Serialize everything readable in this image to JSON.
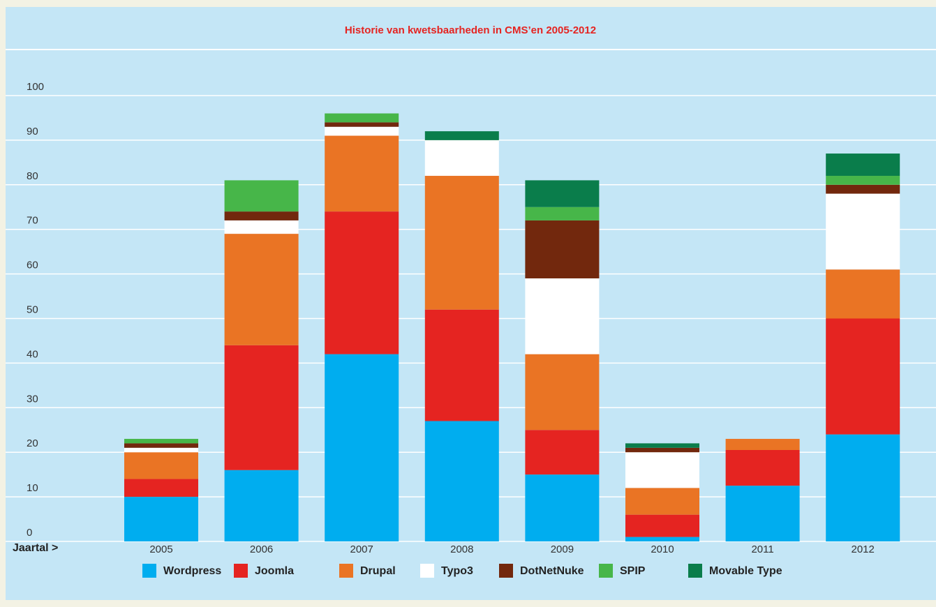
{
  "chart_data": {
    "type": "stacked_bar",
    "title": "Historie van kwetsbaarheden in CMS’en 2005-2012",
    "xlabel": "Jaartal >",
    "categories": [
      "2005",
      "2006",
      "2007",
      "2008",
      "2009",
      "2010",
      "2011",
      "2012"
    ],
    "series": [
      {
        "name": "Wordpress",
        "color": "#00adef",
        "values": [
          10,
          16,
          42,
          27,
          15,
          1,
          12.5,
          24
        ]
      },
      {
        "name": "Joomla",
        "color": "#e52421",
        "values": [
          4,
          28,
          32,
          25,
          10,
          5,
          8,
          26
        ]
      },
      {
        "name": "Drupal",
        "color": "#ea7424",
        "values": [
          6,
          25,
          17,
          30,
          17,
          6,
          2.5,
          11
        ]
      },
      {
        "name": "Typo3",
        "color": "#ffffff",
        "values": [
          1,
          3,
          2,
          8,
          17,
          8,
          0,
          17
        ]
      },
      {
        "name": "DotNetNuke",
        "color": "#72280d",
        "values": [
          1,
          2,
          1,
          0,
          13,
          1,
          0,
          2
        ]
      },
      {
        "name": "SPIP",
        "color": "#47b649",
        "values": [
          1,
          7,
          2,
          0,
          3,
          0,
          0,
          2
        ]
      },
      {
        "name": "Movable Type",
        "color": "#0a7d4b",
        "values": [
          0,
          0,
          0,
          2,
          6,
          1,
          0,
          5
        ]
      }
    ],
    "ylim": [
      0,
      100
    ],
    "yticks": [
      0,
      10,
      20,
      30,
      40,
      50,
      60,
      70,
      80,
      90,
      100
    ],
    "grid": true
  }
}
